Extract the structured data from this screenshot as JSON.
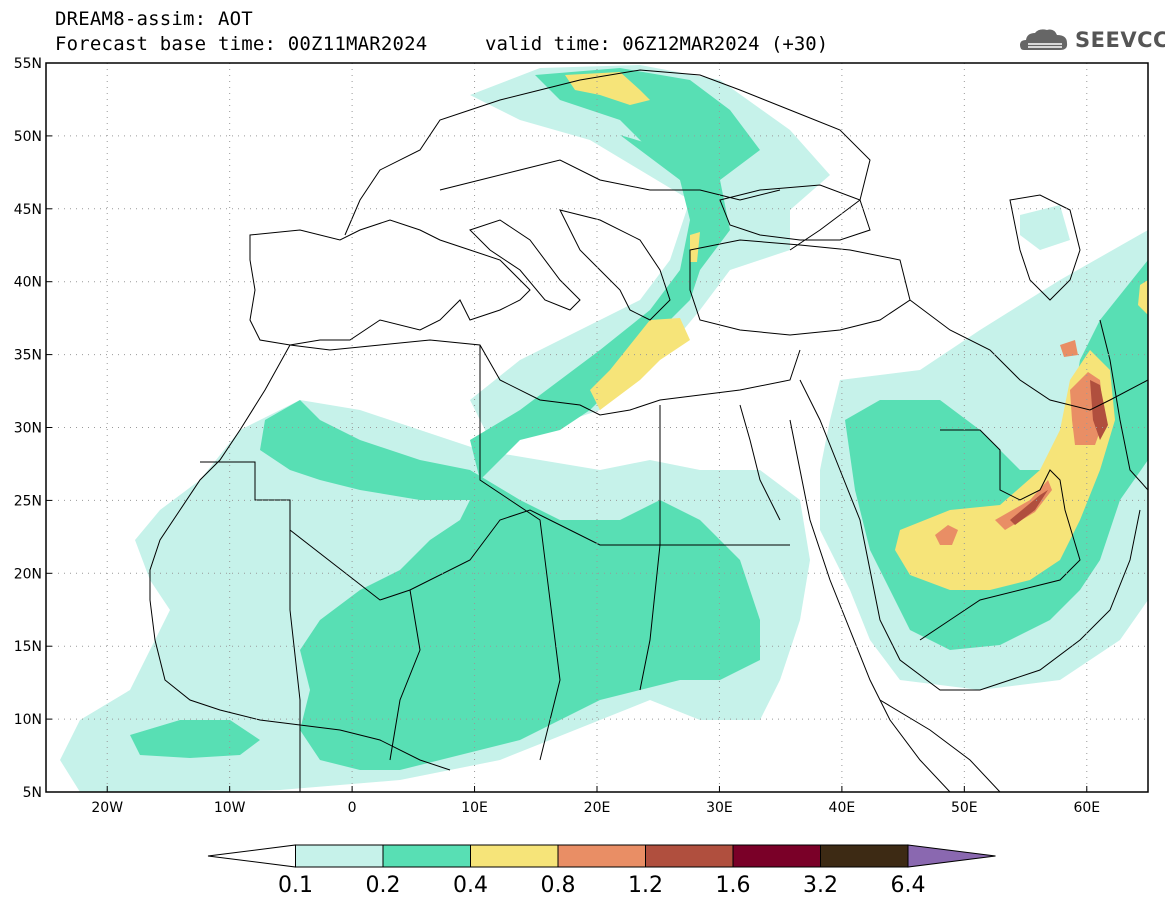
{
  "header": {
    "title": "DREAM8-assim: AOT",
    "base_time": "Forecast base time: 00Z11MAR2024",
    "valid_time": "valid time: 06Z12MAR2024 (+30)"
  },
  "logo": {
    "text": "SEEVCCC",
    "icon": "cloud-logo-icon"
  },
  "map": {
    "lon_range": [
      -25,
      65
    ],
    "lat_range": [
      5,
      55
    ],
    "y_ticks": [
      "55N",
      "50N",
      "45N",
      "40N",
      "35N",
      "30N",
      "25N",
      "20N",
      "15N",
      "10N",
      "5N"
    ],
    "x_ticks": [
      "20W",
      "10W",
      "0",
      "10E",
      "20E",
      "30E",
      "40E",
      "50E",
      "60E"
    ],
    "grid": true
  },
  "colorbar": {
    "levels": [
      "0.1",
      "0.2",
      "0.4",
      "0.8",
      "1.2",
      "1.6",
      "3.2",
      "6.4"
    ],
    "colors": [
      "#ffffff",
      "#c6f2ea",
      "#58dfb4",
      "#f6e479",
      "#e98e65",
      "#b04f3e",
      "#7a0028",
      "#3d2a14",
      "#8a68b0"
    ]
  }
}
